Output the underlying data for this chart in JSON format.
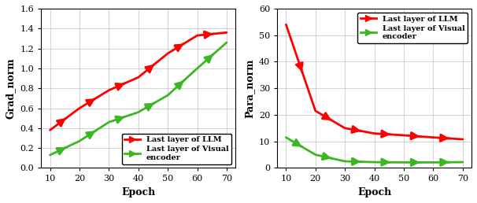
{
  "left": {
    "epochs": [
      10,
      20,
      30,
      40,
      50,
      60,
      70
    ],
    "llm_grad": [
      0.38,
      0.6,
      0.78,
      0.91,
      1.15,
      1.33,
      1.36
    ],
    "vis_grad": [
      0.13,
      0.27,
      0.46,
      0.56,
      0.73,
      1.0,
      1.26
    ],
    "xlabel": "Epoch",
    "ylabel": "Grad_norm",
    "ylim": [
      0,
      1.6
    ],
    "yticks": [
      0,
      0.2,
      0.4,
      0.6,
      0.8,
      1.0,
      1.2,
      1.4,
      1.6
    ],
    "xlim": [
      7,
      73
    ],
    "xticks": [
      10,
      20,
      30,
      40,
      50,
      60,
      70
    ]
  },
  "right": {
    "epochs": [
      10,
      20,
      30,
      40,
      50,
      60,
      70
    ],
    "llm_para": [
      54.0,
      21.5,
      15.0,
      13.0,
      12.3,
      11.5,
      10.8
    ],
    "vis_para": [
      11.5,
      5.0,
      2.5,
      2.2,
      2.1,
      2.1,
      2.2
    ],
    "xlabel": "Epoch",
    "ylabel": "Para_norm",
    "ylim": [
      0,
      60
    ],
    "yticks": [
      0,
      10,
      20,
      30,
      40,
      50,
      60
    ],
    "xlim": [
      7,
      73
    ],
    "xticks": [
      10,
      20,
      30,
      40,
      50,
      60,
      70
    ]
  },
  "llm_color": "#ff0000",
  "vis_color": "#3cb722",
  "legend_llm": "Last layer of LLM",
  "legend_vis": "Last layer of Visual\nencoder",
  "linewidth": 2.0,
  "arrow_mutation_scale": 15
}
